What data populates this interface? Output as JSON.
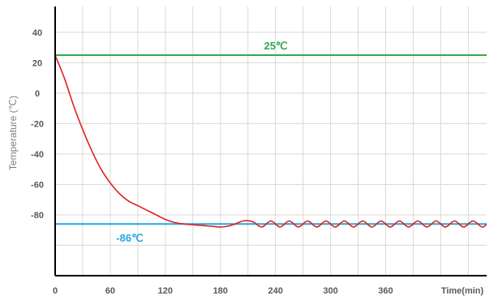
{
  "chart_data": {
    "type": "line",
    "ylabel": "Temperature (℃)",
    "xlabel": "Time(min)",
    "xlim": [
      0,
      470
    ],
    "ylim": [
      -120,
      57
    ],
    "grid": true,
    "x_ticks": [
      0,
      60,
      120,
      180,
      240,
      300,
      360
    ],
    "x_tick_labels": [
      "0",
      "60",
      "120",
      "180",
      "240",
      "300",
      "360"
    ],
    "y_ticks": [
      40,
      20,
      0,
      -20,
      -40,
      -60,
      -80
    ],
    "y_tick_labels": [
      "40",
      "20",
      "0",
      "-20",
      "-40",
      "-60",
      "-80"
    ],
    "reference_lines": [
      {
        "label": "25℃",
        "value": 25,
        "color": "#2eaa4a"
      },
      {
        "label": "-86℃",
        "value": -86,
        "color": "#22a8e0"
      }
    ],
    "series": [
      {
        "color": "#e02020",
        "x": [
          0,
          10,
          20,
          30,
          40,
          50,
          60,
          70,
          80,
          90,
          100,
          110,
          120,
          130,
          140,
          150,
          160,
          170,
          180,
          188,
          196,
          205,
          215,
          225,
          235,
          245,
          255,
          265,
          275,
          285,
          295,
          305,
          315,
          325,
          335,
          345,
          355,
          365,
          375,
          385,
          395,
          405,
          415,
          425,
          435,
          445,
          455,
          465,
          470
        ],
        "values": [
          25,
          10,
          -8,
          -24,
          -38,
          -50,
          -59,
          -66,
          -71,
          -74,
          -77,
          -80,
          -83,
          -85,
          -86,
          -86.5,
          -87,
          -87.5,
          -88,
          -87.5,
          -86,
          -84,
          -84.5,
          -88,
          -84,
          -88,
          -84,
          -88,
          -84,
          -88,
          -84,
          -88,
          -84,
          -88,
          -84,
          -88,
          -84,
          -88,
          -84,
          -88,
          -84,
          -88,
          -84,
          -88,
          -84,
          -88,
          -84,
          -88,
          -86
        ]
      }
    ]
  }
}
